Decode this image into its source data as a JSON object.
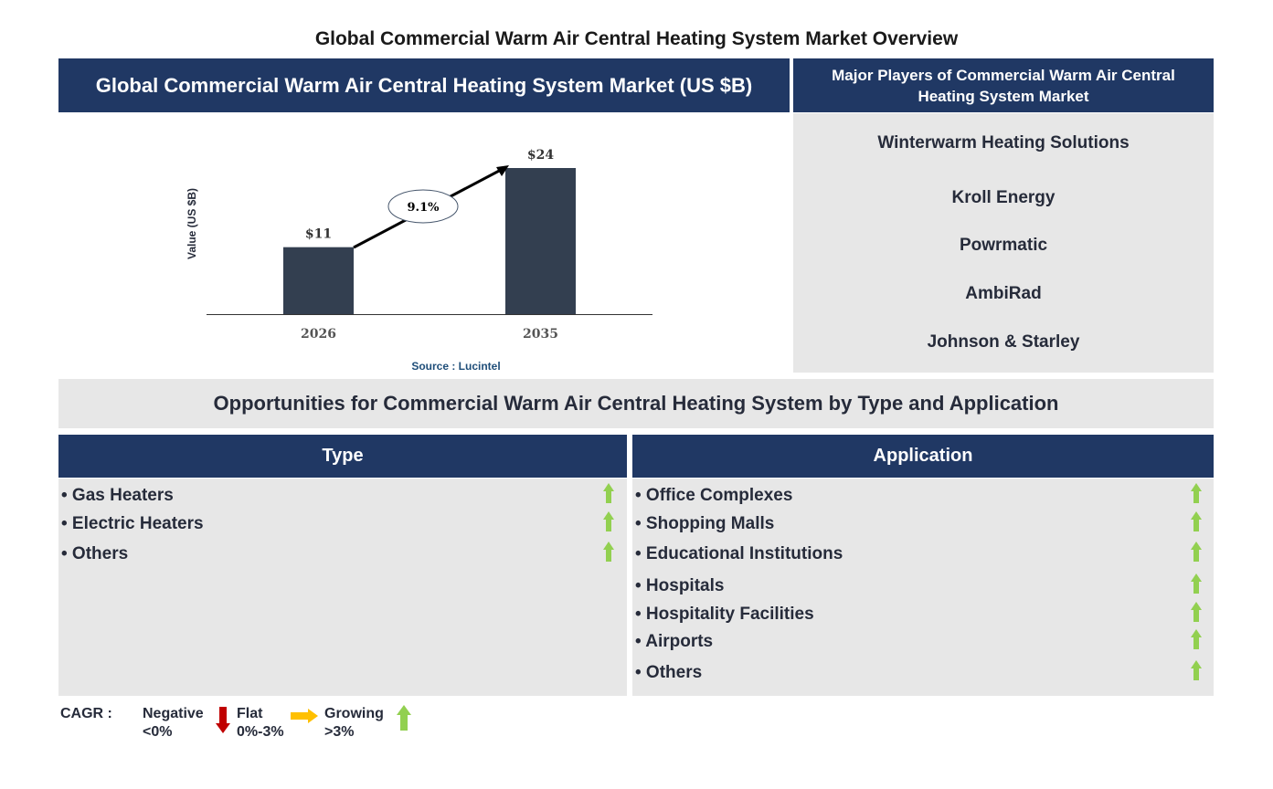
{
  "title": "Global Commercial Warm Air Central Heating System Market Overview",
  "market_header": "Global Commercial Warm Air Central Heating System Market (US $B)",
  "players_header": "Major Players of Commercial Warm Air Central Heating System Market",
  "players": [
    "Winterwarm Heating Solutions",
    "Kroll Energy",
    "Powrmatic",
    "AmbiRad",
    "Johnson & Starley"
  ],
  "chart_data": {
    "type": "bar",
    "categories": [
      "2026",
      "2035"
    ],
    "values": [
      11,
      24
    ],
    "data_labels": [
      "$11",
      "$24"
    ],
    "ylabel": "Value (US $B)",
    "cagr_annotation": "9.1%",
    "source": "Source : Lucintel",
    "bar_color": "#333f50"
  },
  "opportunities_header": "Opportunities for Commercial Warm Air Central Heating System by Type and Application",
  "type": {
    "header": "Type",
    "items": [
      "• Gas Heaters",
      "• Electric Heaters",
      "• Others"
    ],
    "trend": [
      "growing",
      "growing",
      "growing"
    ]
  },
  "application": {
    "header": "Application",
    "items": [
      "• Office Complexes",
      "• Shopping Malls",
      "• Educational Institutions",
      "• Hospitals",
      "• Hospitality Facilities",
      "• Airports",
      "• Others"
    ],
    "trend": [
      "growing",
      "growing",
      "growing",
      "growing",
      "growing",
      "growing",
      "growing"
    ]
  },
  "legend": {
    "label": "CAGR :",
    "negative": "Negative",
    "negative_range": "<0%",
    "flat": "Flat",
    "flat_range": "0%-3%",
    "growing": "Growing",
    "growing_range": ">3%"
  },
  "colors": {
    "navy": "#203864",
    "grey": "#e7e7e7",
    "growing": "#92d050",
    "flat": "#ffc000",
    "negative": "#c00000"
  }
}
